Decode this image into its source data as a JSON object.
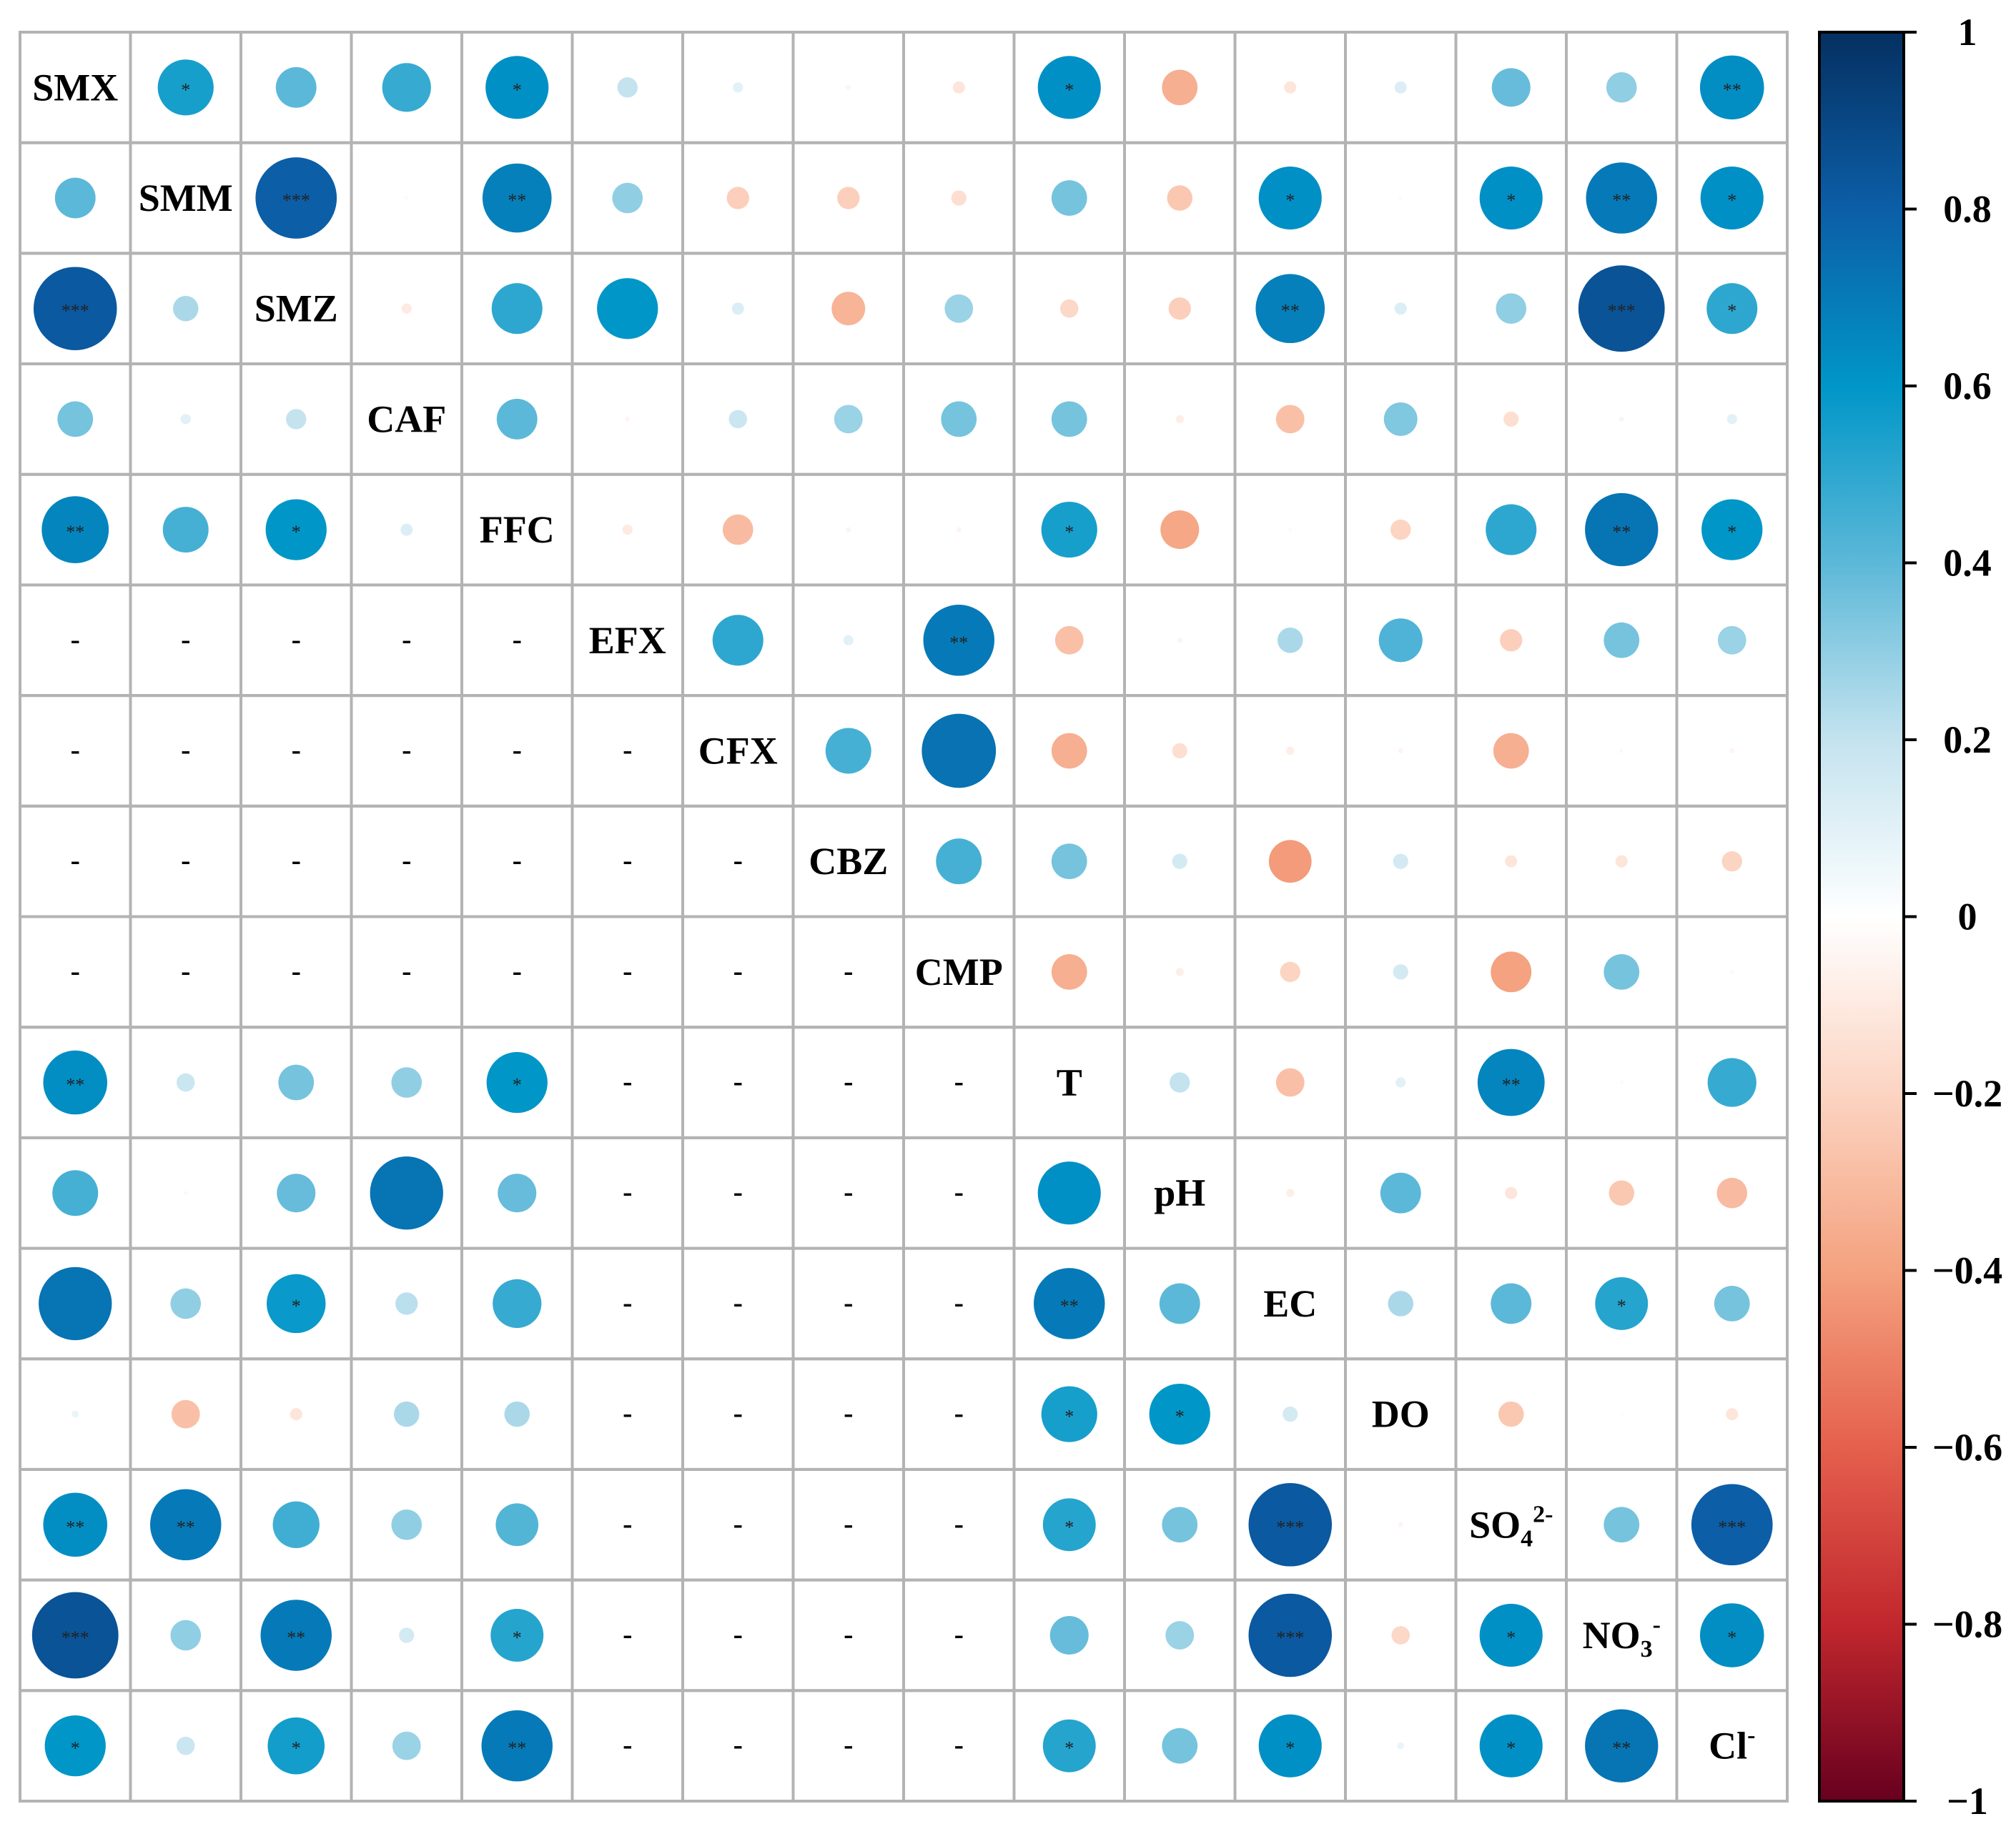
{
  "chart_data": {
    "type": "correlation-matrix",
    "variables": [
      "SMX",
      "SMM",
      "SMZ",
      "CAF",
      "FFC",
      "EFX",
      "CFX",
      "CBZ",
      "CMP",
      "T",
      "pH",
      "EC",
      "DO",
      "SO4",
      "NO3",
      "Cl"
    ],
    "variable_labels": [
      {
        "base": "SMX",
        "sub": "",
        "sup": ""
      },
      {
        "base": "SMM",
        "sub": "",
        "sup": ""
      },
      {
        "base": "SMZ",
        "sub": "",
        "sup": ""
      },
      {
        "base": "CAF",
        "sub": "",
        "sup": ""
      },
      {
        "base": "FFC",
        "sub": "",
        "sup": ""
      },
      {
        "base": "EFX",
        "sub": "",
        "sup": ""
      },
      {
        "base": "CFX",
        "sub": "",
        "sup": ""
      },
      {
        "base": "CBZ",
        "sub": "",
        "sup": ""
      },
      {
        "base": "CMP",
        "sub": "",
        "sup": ""
      },
      {
        "base": "T",
        "sub": "",
        "sup": ""
      },
      {
        "base": "pH",
        "sub": "",
        "sup": ""
      },
      {
        "base": "EC",
        "sub": "",
        "sup": ""
      },
      {
        "base": "DO",
        "sub": "",
        "sup": ""
      },
      {
        "base": "SO",
        "sub": "4",
        "sup": "2-"
      },
      {
        "base": "NO",
        "sub": "3",
        "sup": "-"
      },
      {
        "base": "Cl",
        "sub": "",
        "sup": "-"
      }
    ],
    "missing_marker": "-",
    "matrix": [
      [
        null,
        "0.55|*",
        "0.40",
        "0.48",
        "0.62|*",
        "0.20",
        "0.10",
        "-0.05",
        "-0.12",
        "0.62|*",
        "-0.35",
        "-0.12",
        "0.12",
        "0.38",
        "0.30",
        "0.63|**"
      ],
      [
        "0.40",
        null,
        "0.80|***",
        "0.02",
        "0.68|**",
        "0.30",
        "-0.22",
        "-0.22",
        "-0.15",
        "0.35",
        "-0.25",
        "0.62|*",
        "0.02",
        "0.62|*",
        "0.70|**",
        "0.62|*"
      ],
      [
        "0.82|***",
        "0.25",
        null,
        "-0.10",
        "0.50",
        "0.60",
        "0.12",
        "-0.33",
        "0.28",
        "-0.18",
        "-0.22",
        "0.68|**",
        "0.12",
        "0.30",
        "0.85|***",
        "0.50|*"
      ],
      [
        "0.35",
        "0.10",
        "0.20",
        null,
        "0.40",
        "-0.05",
        "0.18",
        "0.28",
        "0.35",
        "0.35",
        "-0.08",
        "-0.28",
        "0.33",
        "-0.15",
        "0.05",
        "0.10"
      ],
      [
        "0.66|**",
        "0.45",
        "0.60|*",
        "0.12",
        null,
        "-0.10",
        "-0.30",
        "0.05",
        "-0.05",
        "0.55|*",
        "-0.38",
        "0.02",
        "-0.20",
        "0.50",
        "0.72|**",
        "0.60|*"
      ],
      [
        "-",
        "-",
        "-",
        "-",
        "-",
        null,
        "0.50",
        "0.10",
        "0.70|**",
        "-0.28",
        "-0.05",
        "0.25",
        "0.43",
        "-0.22",
        "0.35",
        "0.28"
      ],
      [
        "-",
        "-",
        "-",
        "-",
        "-",
        "-",
        null,
        "0.45",
        "0.73",
        "-0.35",
        "-0.15",
        "-0.08",
        "-0.05",
        "-0.35",
        "-0.03",
        "-0.05"
      ],
      [
        "-",
        "-",
        "-",
        "-",
        "-",
        "-",
        "-",
        null,
        "0.45",
        "0.35",
        "0.15",
        "-0.42",
        "0.15",
        "-0.12",
        "-0.12",
        "-0.20"
      ],
      [
        "-",
        "-",
        "-",
        "-",
        "-",
        "-",
        "-",
        "-",
        null,
        "-0.35",
        "-0.08",
        "-0.20",
        "0.15",
        "-0.40",
        "0.35",
        "-0.03"
      ],
      [
        "0.63|**",
        "0.18",
        "0.35",
        "0.30",
        "0.60|*",
        "-",
        "-",
        "-",
        "-",
        null,
        "0.20",
        "-0.28",
        "0.10",
        "0.66|**",
        "0.02",
        "0.48"
      ],
      [
        "0.45",
        "0.03",
        "0.38",
        "0.72",
        "0.38",
        "-",
        "-",
        "-",
        "-",
        "0.62",
        null,
        "-0.08",
        "0.40",
        "-0.12",
        "-0.25",
        "-0.30"
      ],
      [
        "0.72",
        "0.30",
        "0.58|*",
        "0.22",
        "0.48",
        "-",
        "-",
        "-",
        "-",
        "0.70|**",
        "0.40",
        null,
        "0.25",
        "0.40",
        "0.52|*",
        "0.35"
      ],
      [
        "0.07",
        "-0.28",
        "-0.12",
        "0.25",
        "0.25",
        "-",
        "-",
        "-",
        "-",
        "0.55|*",
        "0.60|*",
        "0.15",
        null,
        "-0.25",
        "0.01",
        "-0.12"
      ],
      [
        "0.63|**",
        "0.70|**",
        "0.46",
        "0.30",
        "0.42",
        "-",
        "-",
        "-",
        "-",
        "0.52|*",
        "0.35",
        "0.82|***",
        "-0.05",
        null,
        "0.35",
        "0.80|***"
      ],
      [
        "0.85|***",
        "0.30",
        "0.70|**",
        "0.15",
        "0.52|*",
        "-",
        "-",
        "-",
        "-",
        "0.38",
        "0.28",
        "0.82|***",
        "-0.18",
        "0.62|*",
        null,
        "0.63|*"
      ],
      [
        "0.60|*",
        "0.18",
        "0.56|*",
        "0.28",
        "0.70|**",
        "-",
        "-",
        "-",
        "-",
        "0.52|*",
        "0.35",
        "0.62|*",
        "0.07",
        "0.62|*",
        "0.72|**",
        null
      ]
    ],
    "colorbar": {
      "range": [
        -1,
        1
      ],
      "tick_labels": [
        "1",
        "0.8",
        "0.6",
        "0.4",
        "0.2",
        "0",
        "−0.2",
        "−0.4",
        "−0.6",
        "−0.8",
        "−1"
      ],
      "stops": [
        {
          "v": 1.0,
          "color": "#053061"
        },
        {
          "v": 0.8,
          "color": "#0c5ea7"
        },
        {
          "v": 0.6,
          "color": "#0096c8"
        },
        {
          "v": 0.4,
          "color": "#5cb8d8"
        },
        {
          "v": 0.2,
          "color": "#c4e3ef"
        },
        {
          "v": 0.0,
          "color": "#ffffff"
        },
        {
          "v": -0.2,
          "color": "#fcd4c2"
        },
        {
          "v": -0.4,
          "color": "#f4a27f"
        },
        {
          "v": -0.6,
          "color": "#e5604d"
        },
        {
          "v": -0.8,
          "color": "#c1272d"
        },
        {
          "v": -1.0,
          "color": "#67001f"
        }
      ]
    }
  }
}
